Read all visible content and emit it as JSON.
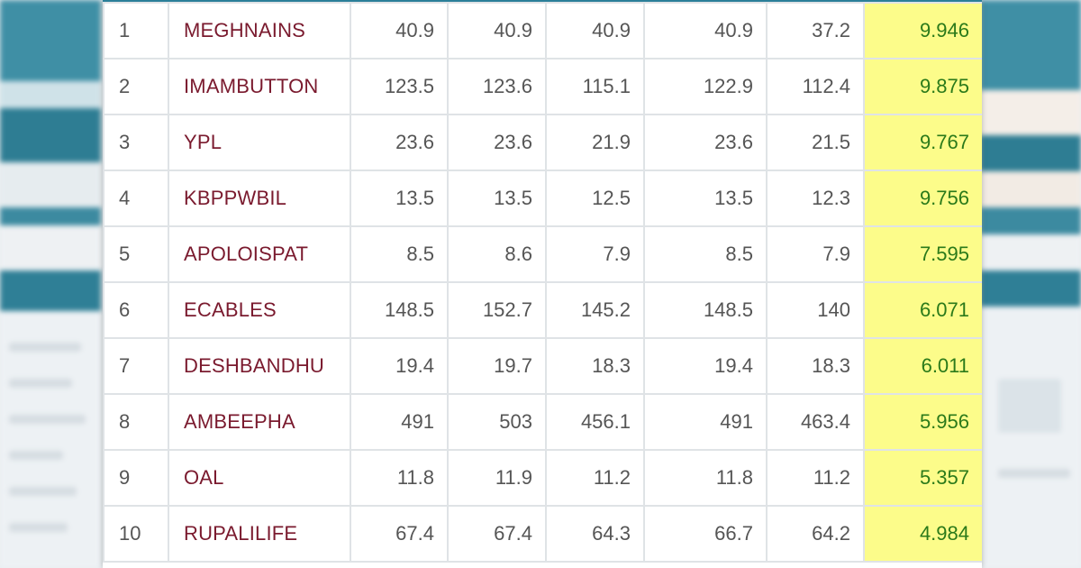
{
  "colors": {
    "name_color": "#7a1a2e",
    "change_bg": "#fcfc8a",
    "change_color": "#2b7a1a",
    "accent": "#2b7f99"
  },
  "rows": [
    {
      "rank": "1",
      "code": "MEGHNAINS",
      "c1": "40.9",
      "c2": "40.9",
      "c3": "40.9",
      "c4": "40.9",
      "c5": "37.2",
      "change": "9.946"
    },
    {
      "rank": "2",
      "code": "IMAMBUTTON",
      "c1": "123.5",
      "c2": "123.6",
      "c3": "115.1",
      "c4": "122.9",
      "c5": "112.4",
      "change": "9.875"
    },
    {
      "rank": "3",
      "code": "YPL",
      "c1": "23.6",
      "c2": "23.6",
      "c3": "21.9",
      "c4": "23.6",
      "c5": "21.5",
      "change": "9.767"
    },
    {
      "rank": "4",
      "code": "KBPPWBIL",
      "c1": "13.5",
      "c2": "13.5",
      "c3": "12.5",
      "c4": "13.5",
      "c5": "12.3",
      "change": "9.756"
    },
    {
      "rank": "5",
      "code": "APOLOISPAT",
      "c1": "8.5",
      "c2": "8.6",
      "c3": "7.9",
      "c4": "8.5",
      "c5": "7.9",
      "change": "7.595"
    },
    {
      "rank": "6",
      "code": "ECABLES",
      "c1": "148.5",
      "c2": "152.7",
      "c3": "145.2",
      "c4": "148.5",
      "c5": "140",
      "change": "6.071"
    },
    {
      "rank": "7",
      "code": "DESHBANDHU",
      "c1": "19.4",
      "c2": "19.7",
      "c3": "18.3",
      "c4": "19.4",
      "c5": "18.3",
      "change": "6.011"
    },
    {
      "rank": "8",
      "code": "AMBEEPHA",
      "c1": "491",
      "c2": "503",
      "c3": "456.1",
      "c4": "491",
      "c5": "463.4",
      "change": "5.956"
    },
    {
      "rank": "9",
      "code": "OAL",
      "c1": "11.8",
      "c2": "11.9",
      "c3": "11.2",
      "c4": "11.8",
      "c5": "11.2",
      "change": "5.357"
    },
    {
      "rank": "10",
      "code": "RUPALILIFE",
      "c1": "67.4",
      "c2": "67.4",
      "c3": "64.3",
      "c4": "66.7",
      "c5": "64.2",
      "change": "4.984"
    }
  ]
}
